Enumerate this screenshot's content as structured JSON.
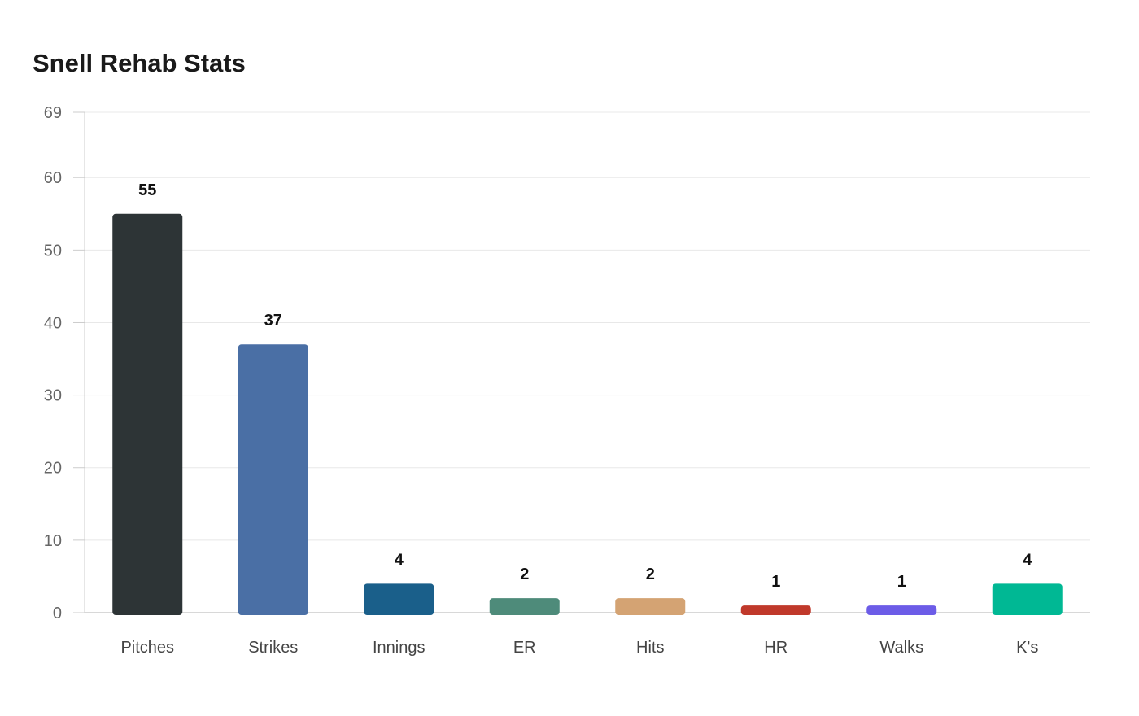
{
  "chart_data": {
    "type": "bar",
    "title": "Snell Rehab Stats",
    "xlabel": "",
    "ylabel": "",
    "categories": [
      "Pitches",
      "Strikes",
      "Innings",
      "ER",
      "Hits",
      "HR",
      "Walks",
      "K's"
    ],
    "values": [
      55,
      37,
      4,
      2,
      2,
      1,
      1,
      4
    ],
    "colors": [
      "#2d3436",
      "#4a6fa5",
      "#1a5f8a",
      "#4e8b7a",
      "#d4a373",
      "#c0392b",
      "#6c5ce7",
      "#00b894"
    ],
    "ylim": [
      0,
      69
    ],
    "yticks": [
      0,
      10,
      20,
      30,
      40,
      50,
      60,
      69
    ],
    "grid": true,
    "legend": "none"
  }
}
